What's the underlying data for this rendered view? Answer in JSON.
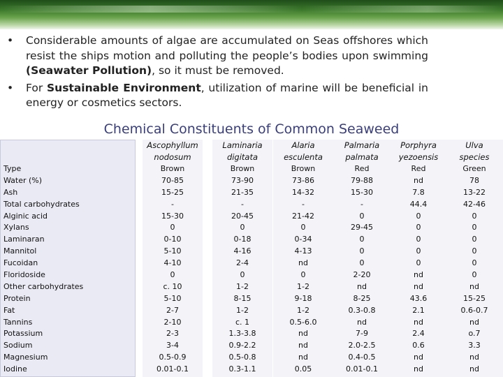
{
  "slide": {
    "bullets": [
      {
        "before": "Considerable amounts of algae are accumulated on Seas offshores which resist the ships motion and polluting the people’s bodies upon swimming ",
        "bold": "(Seawater Pollution)",
        "after": ", so it must be removed."
      },
      {
        "before": "For ",
        "bold": "Sustainable Environment",
        "after": ", utilization of marine will be beneficial in energy or cosmetics sectors."
      }
    ],
    "title": "Chemical Constituents of Common Seaweed"
  },
  "table": {
    "row_labels": [
      "Type",
      "Water (%)",
      "Ash",
      "Total carbohydrates",
      "Alginic acid",
      "Xylans",
      "Laminaran",
      "Mannitol",
      "Fucoidan",
      "Floridoside",
      "Other carbohydrates",
      "Protein",
      "Fat",
      "Tannins",
      "Potassium",
      "Sodium",
      "Magnesium",
      "Iodine"
    ],
    "columns": [
      {
        "name_line1": "Ascophyllum",
        "name_line2": "nodosum",
        "values": [
          "Brown",
          "70-85",
          "15-25",
          "-",
          "15-30",
          "0",
          "0-10",
          "5-10",
          "4-10",
          "0",
          "c. 10",
          "5-10",
          "2-7",
          "2-10",
          "2-3",
          "3-4",
          "0.5-0.9",
          "0.01-0.1"
        ]
      },
      {
        "name_line1": "Laminaria",
        "name_line2": "digitata",
        "values": [
          "Brown",
          "73-90",
          "21-35",
          "-",
          "20-45",
          "0",
          "0-18",
          "4-16",
          "2-4",
          "0",
          "1-2",
          "8-15",
          "1-2",
          "c. 1",
          "1.3-3.8",
          "0.9-2.2",
          "0.5-0.8",
          "0.3-1.1"
        ]
      },
      {
        "name_line1": "Alaria",
        "name_line2": "esculenta",
        "values": [
          "Brown",
          "73-86",
          "14-32",
          "-",
          "21-42",
          "0",
          "0-34",
          "4-13",
          "nd",
          "0",
          "1-2",
          "9-18",
          "1-2",
          "0.5-6.0",
          "nd",
          "nd",
          "nd",
          "0.05"
        ]
      },
      {
        "name_line1": "Palmaria",
        "name_line2": "palmata",
        "values": [
          "Red",
          "79-88",
          "15-30",
          "-",
          "0",
          "29-45",
          "0",
          "0",
          "0",
          "2-20",
          "nd",
          "8-25",
          "0.3-0.8",
          "nd",
          "7-9",
          "2.0-2.5",
          "0.4-0.5",
          "0.01-0.1"
        ]
      },
      {
        "name_line1": "Porphyra",
        "name_line2": "yezoensis",
        "values": [
          "Red",
          "nd",
          "7.8",
          "44.4",
          "0",
          "0",
          "0",
          "0",
          "0",
          "nd",
          "nd",
          "43.6",
          "2.1",
          "nd",
          "2.4",
          "0.6",
          "nd",
          "nd"
        ]
      },
      {
        "name_line1": "Ulva",
        "name_line2": "species",
        "values": [
          "Green",
          "78",
          "13-22",
          "42-46",
          "0",
          "0",
          "0",
          "0",
          "0",
          "0",
          "nd",
          "15-25",
          "0.6-0.7",
          "nd",
          "o.7",
          "3.3",
          "nd",
          "nd"
        ]
      }
    ]
  }
}
